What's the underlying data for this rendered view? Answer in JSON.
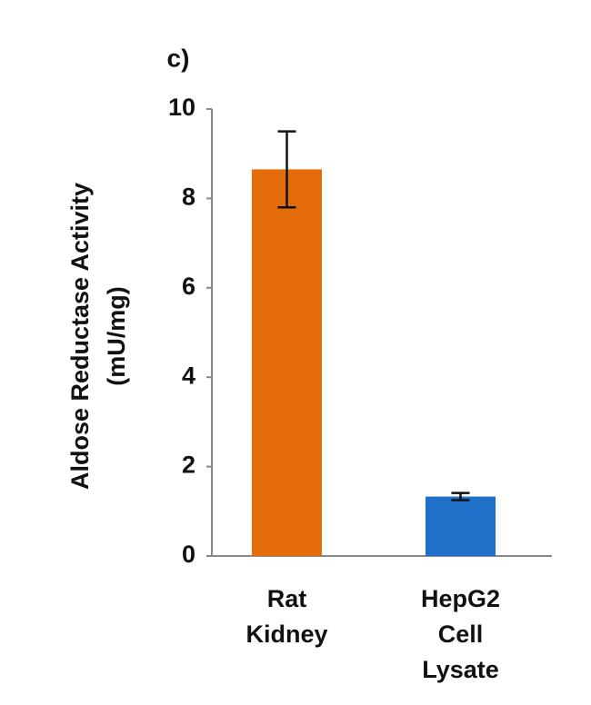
{
  "chart_data": {
    "type": "bar",
    "title": "c)",
    "y_label": [
      "Aldose Reductase Activity",
      "(mU/mg)"
    ],
    "categories": [
      [
        "Rat",
        "Kidney"
      ],
      [
        "HepG2",
        "Cell",
        "Lysate"
      ]
    ],
    "values": [
      8.65,
      1.33
    ],
    "errors": [
      0.85,
      0.08
    ],
    "colors": [
      "#e46c0a",
      "#1e70c8"
    ],
    "ylim": [
      0,
      10
    ],
    "yticks": [
      0,
      2,
      4,
      6,
      8,
      10
    ],
    "grid": false
  }
}
